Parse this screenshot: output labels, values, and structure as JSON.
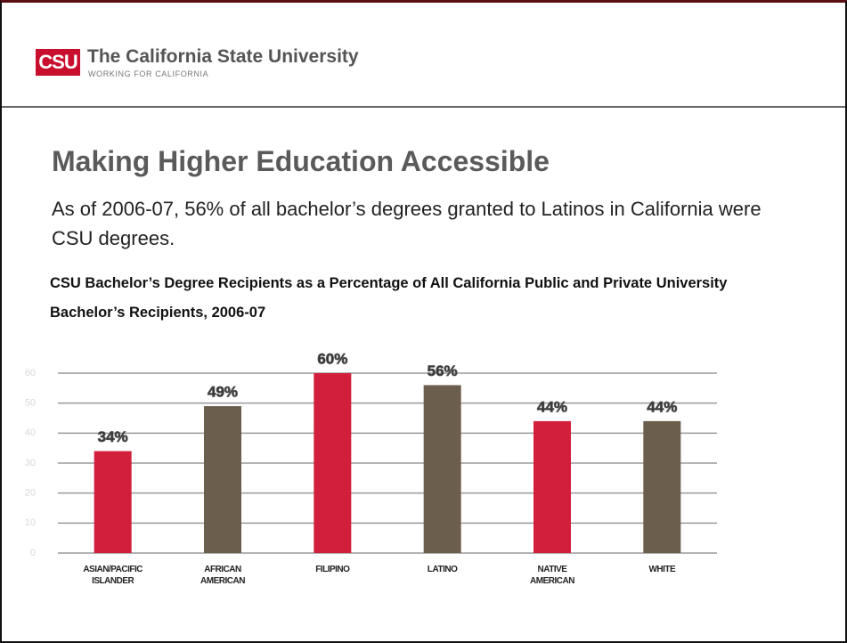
{
  "header": {
    "logo": "CSU",
    "organization": "The California State University",
    "tagline": "WORKING FOR CALIFORNIA"
  },
  "title": "Making Higher Education Accessible",
  "subtitle": "As of 2006-07, 56% of all bachelor’s degrees granted to Latinos in California were CSU degrees.",
  "chart_data": {
    "type": "bar",
    "title": "CSU Bachelor’s Degree Recipients as a Percentage of All California Public and Private University Bachelor’s Recipients, 2006-07",
    "categories": [
      "ASIAN/PACIFIC ISLANDER",
      "AFRICAN AMERICAN",
      "FILIPINO",
      "LATINO",
      "NATIVE AMERICAN",
      "WHITE"
    ],
    "values": [
      34,
      49,
      60,
      56,
      44,
      44
    ],
    "value_labels": [
      "34%",
      "49%",
      "60%",
      "56%",
      "44%",
      "44%"
    ],
    "colors": [
      "#d21f3c",
      "#6b5e4c",
      "#d21f3c",
      "#6b5e4c",
      "#d21f3c",
      "#6b5e4c"
    ],
    "ylim": [
      0,
      60
    ],
    "yticks": [
      0,
      10,
      20,
      30,
      40,
      50,
      60
    ],
    "grid": true
  }
}
